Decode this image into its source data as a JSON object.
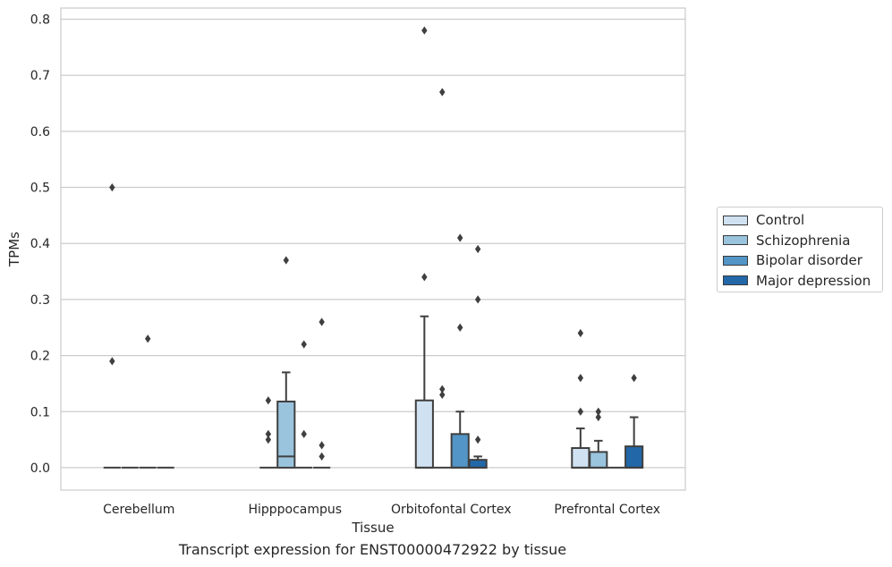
{
  "chart_data": {
    "type": "box",
    "xlabel": "Tissue",
    "ylabel": "TPMs",
    "caption": "Transcript expression for ENST00000472922 by tissue",
    "ylim": [
      -0.04,
      0.82
    ],
    "yticks": [
      0.0,
      0.1,
      0.2,
      0.3,
      0.4,
      0.5,
      0.6,
      0.7,
      0.8
    ],
    "ytick_labels": [
      "0.0",
      "0.1",
      "0.2",
      "0.3",
      "0.4",
      "0.5",
      "0.6",
      "0.7",
      "0.8"
    ],
    "grid": "horizontal",
    "legend_position": "right",
    "categories": [
      "Cerebellum",
      "Hipppocampus",
      "Orbitofontal Cortex",
      "Prefrontal Cortex"
    ],
    "series": [
      {
        "name": "Control",
        "color": "#d0e1f2",
        "boxes": [
          {
            "q1": 0,
            "median": 0,
            "q3": 0,
            "whisker_low": 0,
            "whisker_high": 0,
            "outliers": [
              0.19,
              0.5
            ]
          },
          {
            "q1": 0,
            "median": 0,
            "q3": 0,
            "whisker_low": 0,
            "whisker_high": 0,
            "outliers": [
              0.05,
              0.06,
              0.12
            ]
          },
          {
            "q1": 0,
            "median": 0,
            "q3": 0.12,
            "whisker_low": 0,
            "whisker_high": 0.27,
            "outliers": [
              0.34,
              0.78
            ]
          },
          {
            "q1": 0,
            "median": 0,
            "q3": 0.035,
            "whisker_low": 0,
            "whisker_high": 0.07,
            "outliers": [
              0.1,
              0.16,
              0.24
            ]
          }
        ]
      },
      {
        "name": "Schizophrenia",
        "color": "#9ac4de",
        "boxes": [
          {
            "q1": 0,
            "median": 0,
            "q3": 0,
            "whisker_low": 0,
            "whisker_high": 0,
            "outliers": []
          },
          {
            "q1": 0,
            "median": 0.02,
            "q3": 0.118,
            "whisker_low": 0,
            "whisker_high": 0.17,
            "outliers": [
              0.37
            ]
          },
          {
            "q1": 0,
            "median": 0,
            "q3": 0,
            "whisker_low": 0,
            "whisker_high": 0,
            "outliers": [
              0.13,
              0.14,
              0.67
            ]
          },
          {
            "q1": 0,
            "median": 0,
            "q3": 0.028,
            "whisker_low": 0,
            "whisker_high": 0.048,
            "outliers": [
              0.09,
              0.1
            ]
          }
        ]
      },
      {
        "name": "Bipolar disorder",
        "color": "#5295c6",
        "boxes": [
          {
            "q1": 0,
            "median": 0,
            "q3": 0,
            "whisker_low": 0,
            "whisker_high": 0,
            "outliers": [
              0.23
            ]
          },
          {
            "q1": 0,
            "median": 0,
            "q3": 0,
            "whisker_low": 0,
            "whisker_high": 0,
            "outliers": [
              0.06,
              0.22
            ]
          },
          {
            "q1": 0,
            "median": 0,
            "q3": 0.06,
            "whisker_low": 0,
            "whisker_high": 0.1,
            "outliers": [
              0.25,
              0.41
            ]
          },
          {
            "q1": 0,
            "median": 0,
            "q3": 0,
            "whisker_low": 0,
            "whisker_high": 0,
            "outliers": []
          }
        ]
      },
      {
        "name": "Major depression",
        "color": "#2268a9",
        "boxes": [
          {
            "q1": 0,
            "median": 0,
            "q3": 0,
            "whisker_low": 0,
            "whisker_high": 0,
            "outliers": []
          },
          {
            "q1": 0,
            "median": 0,
            "q3": 0,
            "whisker_low": 0,
            "whisker_high": 0,
            "outliers": [
              0.02,
              0.04,
              0.26
            ]
          },
          {
            "q1": 0,
            "median": 0,
            "q3": 0.014,
            "whisker_low": 0,
            "whisker_high": 0.02,
            "outliers": [
              0.05,
              0.3,
              0.39
            ]
          },
          {
            "q1": 0,
            "median": 0,
            "q3": 0.038,
            "whisker_low": 0,
            "whisker_high": 0.09,
            "outliers": [
              0.16
            ]
          }
        ]
      }
    ]
  }
}
